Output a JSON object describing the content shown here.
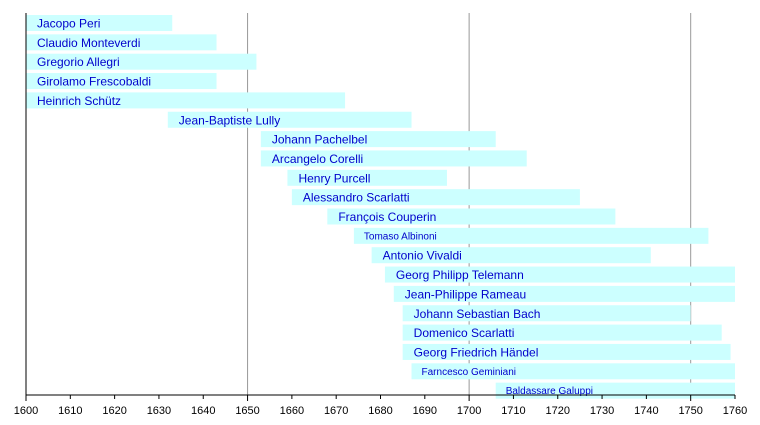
{
  "chart_data": {
    "type": "timeline",
    "title": "",
    "xlabel": "",
    "ylabel": "",
    "xlim": [
      1600,
      1760
    ],
    "grid": "vertical lines at major ticks",
    "major_ticks": [
      1600,
      1650,
      1700,
      1750
    ],
    "tick_labels": [
      "1600",
      "1610",
      "1620",
      "1630",
      "1640",
      "1650",
      "1660",
      "1670",
      "1680",
      "1690",
      "1700",
      "1710",
      "1720",
      "1730",
      "1740",
      "1750",
      "1760"
    ],
    "bar_color": "#ccffff",
    "label_color": "#0000cc",
    "entries": [
      {
        "name": "Jacopo Peri",
        "start": 1600,
        "end": 1633,
        "small": false
      },
      {
        "name": "Claudio Monteverdi",
        "start": 1600,
        "end": 1643,
        "small": false
      },
      {
        "name": "Gregorio Allegri",
        "start": 1600,
        "end": 1652,
        "small": false
      },
      {
        "name": "Girolamo Frescobaldi",
        "start": 1600,
        "end": 1643,
        "small": false
      },
      {
        "name": "Heinrich Schütz",
        "start": 1600,
        "end": 1672,
        "small": false
      },
      {
        "name": "Jean-Baptiste Lully",
        "start": 1632,
        "end": 1687,
        "small": false
      },
      {
        "name": "Johann Pachelbel",
        "start": 1653,
        "end": 1706,
        "small": false
      },
      {
        "name": "Arcangelo Corelli",
        "start": 1653,
        "end": 1713,
        "small": false
      },
      {
        "name": "Henry Purcell",
        "start": 1659,
        "end": 1695,
        "small": false
      },
      {
        "name": "Alessandro Scarlatti",
        "start": 1660,
        "end": 1725,
        "small": false
      },
      {
        "name": "François Couperin",
        "start": 1668,
        "end": 1733,
        "small": false
      },
      {
        "name": "Tomaso Albinoni",
        "start": 1674,
        "end": 1754,
        "small": true
      },
      {
        "name": "Antonio Vivaldi",
        "start": 1678,
        "end": 1741,
        "small": false
      },
      {
        "name": "Georg Philipp Telemann",
        "start": 1681,
        "end": 1760,
        "small": false
      },
      {
        "name": "Jean-Philippe Rameau",
        "start": 1683,
        "end": 1760,
        "small": false
      },
      {
        "name": "Johann Sebastian Bach",
        "start": 1685,
        "end": 1750,
        "small": false
      },
      {
        "name": "Domenico Scarlatti",
        "start": 1685,
        "end": 1757,
        "small": false
      },
      {
        "name": "Georg Friedrich Händel",
        "start": 1685,
        "end": 1759,
        "small": false
      },
      {
        "name": "Farncesco Geminiani",
        "start": 1687,
        "end": 1760,
        "small": true
      },
      {
        "name": "Baldassare Galuppi",
        "start": 1706,
        "end": 1760,
        "small": true
      }
    ]
  }
}
